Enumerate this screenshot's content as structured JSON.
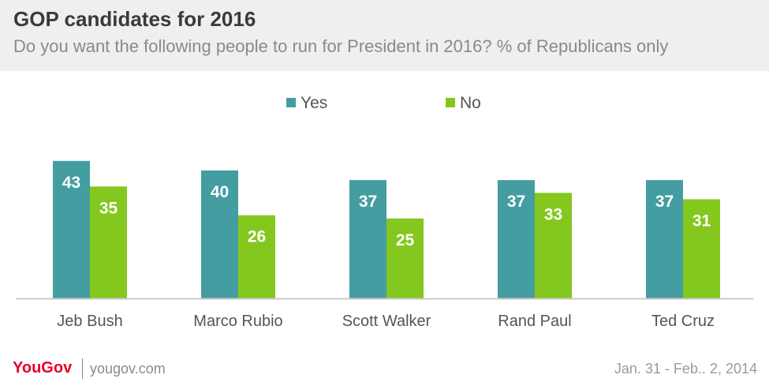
{
  "header": {
    "title": "GOP candidates for 2016",
    "subtitle": "Do you want the following people to run for President in 2016? % of Republicans only"
  },
  "footer": {
    "brand": "YouGov",
    "url": "yougov.com",
    "date": "Jan. 31 - Feb.. 2, 2014"
  },
  "colors": {
    "yes": "#449da1",
    "no": "#84c71e",
    "axis": "#c8c8c8",
    "label_text": "#ffffff",
    "category_text": "#555555"
  },
  "chart_data": {
    "type": "bar",
    "categories": [
      "Jeb Bush",
      "Marco Rubio",
      "Scott Walker",
      "Rand Paul",
      "Ted Cruz"
    ],
    "series": [
      {
        "name": "Yes",
        "values": [
          43,
          40,
          37,
          37,
          37
        ]
      },
      {
        "name": "No",
        "values": [
          35,
          26,
          25,
          33,
          31
        ]
      }
    ],
    "ylim": [
      0,
      50
    ],
    "grid": false,
    "legend_position": "top-center",
    "data_labels": true
  }
}
